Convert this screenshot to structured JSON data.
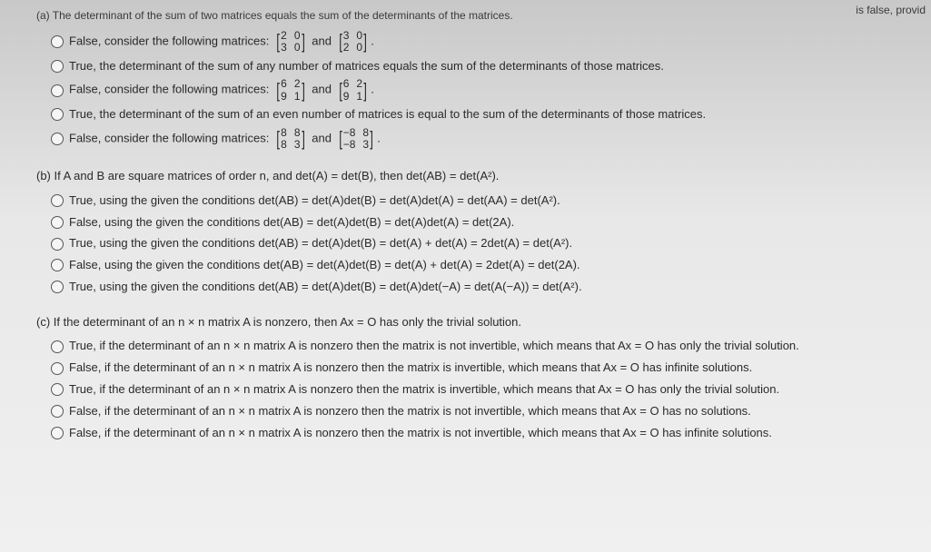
{
  "header": {
    "right_fragment": "is false, provid",
    "left_fragment": "(a) The determinant of the sum of two matrices equals the sum of the determinants of the matrices."
  },
  "partA": {
    "opt1_pre": "False, consider the following matrices:",
    "opt1_m1": [
      "2",
      "0",
      "3",
      "0"
    ],
    "opt1_mid": "and",
    "opt1_m2": [
      "3",
      "0",
      "2",
      "0"
    ],
    "opt2": "True, the determinant of the sum of any number of matrices equals the sum of the determinants of those matrices.",
    "opt3_pre": "False, consider the following matrices:",
    "opt3_m1": [
      "6",
      "2",
      "9",
      "1"
    ],
    "opt3_mid": "and",
    "opt3_m2": [
      "6",
      "2",
      "9",
      "1"
    ],
    "opt4": "True, the determinant of the sum of an even number of matrices is equal to the sum of the determinants of those matrices.",
    "opt5_pre": "False, consider the following matrices:",
    "opt5_m1": [
      "8",
      "8",
      "8",
      "3"
    ],
    "opt5_mid": "and",
    "opt5_m2": [
      "−8",
      "8",
      "−8",
      "3"
    ]
  },
  "partB": {
    "head": "(b) If A and B are square matrices of order n, and det(A) = det(B), then det(AB) = det(A²).",
    "opt1": "True, using the given the conditions det(AB) = det(A)det(B) = det(A)det(A) = det(AA) = det(A²).",
    "opt2": "False, using the given the conditions det(AB) = det(A)det(B) = det(A)det(A) = det(2A).",
    "opt3": "True, using the given the conditions det(AB) = det(A)det(B) = det(A) + det(A) = 2det(A) = det(A²).",
    "opt4": "False, using the given the conditions det(AB) = det(A)det(B) = det(A) + det(A) = 2det(A) = det(2A).",
    "opt5": "True, using the given the conditions det(AB) = det(A)det(B) = det(A)det(−A) = det(A(−A)) = det(A²)."
  },
  "partC": {
    "head": "(c) If the determinant of an n × n matrix A is nonzero, then Ax = O has only the trivial solution.",
    "opt1": "True, if the determinant of an n × n matrix A is nonzero then the matrix is not invertible, which means that Ax = O has only the trivial solution.",
    "opt2": "False, if the determinant of an n × n matrix A is nonzero then the matrix is invertible, which means that Ax = O has infinite solutions.",
    "opt3": "True, if the determinant of an n × n matrix A is nonzero then the matrix is invertible, which means that Ax = O has only the trivial solution.",
    "opt4": "False, if the determinant of an n × n matrix A is nonzero then the matrix is not invertible, which means that Ax = O has no solutions.",
    "opt5": "False, if the determinant of an n × n matrix A is nonzero then the matrix is not invertible, which means that Ax = O has infinite solutions."
  }
}
